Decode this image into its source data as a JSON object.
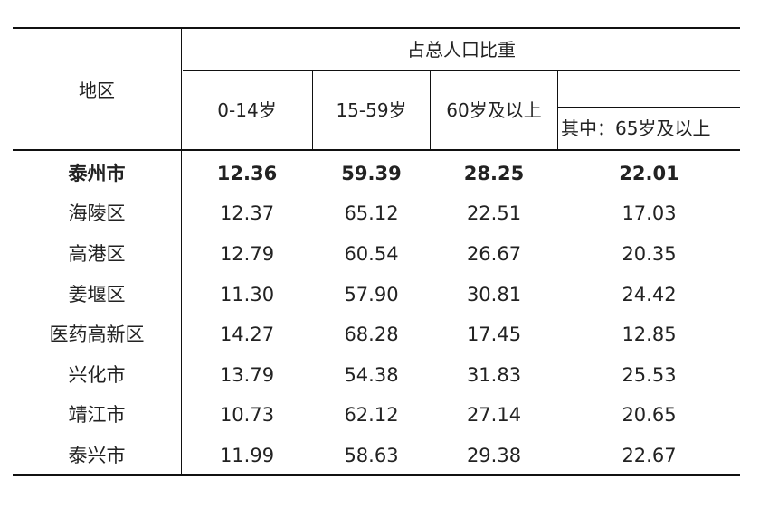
{
  "table": {
    "header": {
      "region": "地区",
      "group": "占总人口比重",
      "age_0_14": "0-14岁",
      "age_15_59": "15-59岁",
      "age_60_plus": "60岁及以上",
      "age_65_plus": "其中：65岁及以上"
    },
    "rows": [
      {
        "region": "泰州市",
        "v0_14": "12.36",
        "v15_59": "59.39",
        "v60": "28.25",
        "v65": "22.01",
        "bold": true
      },
      {
        "region": "海陵区",
        "v0_14": "12.37",
        "v15_59": "65.12",
        "v60": "22.51",
        "v65": "17.03"
      },
      {
        "region": "高港区",
        "v0_14": "12.79",
        "v15_59": "60.54",
        "v60": "26.67",
        "v65": "20.35"
      },
      {
        "region": "姜堰区",
        "v0_14": "11.30",
        "v15_59": "57.90",
        "v60": "30.81",
        "v65": "24.42"
      },
      {
        "region": "医药高新区",
        "v0_14": "14.27",
        "v15_59": "68.28",
        "v60": "17.45",
        "v65": "12.85"
      },
      {
        "region": "兴化市",
        "v0_14": "13.79",
        "v15_59": "54.38",
        "v60": "31.83",
        "v65": "25.53"
      },
      {
        "region": "靖江市",
        "v0_14": "10.73",
        "v15_59": "62.12",
        "v60": "27.14",
        "v65": "20.65"
      },
      {
        "region": "泰兴市",
        "v0_14": "11.99",
        "v15_59": "58.63",
        "v60": "29.38",
        "v65": "22.67"
      }
    ]
  }
}
